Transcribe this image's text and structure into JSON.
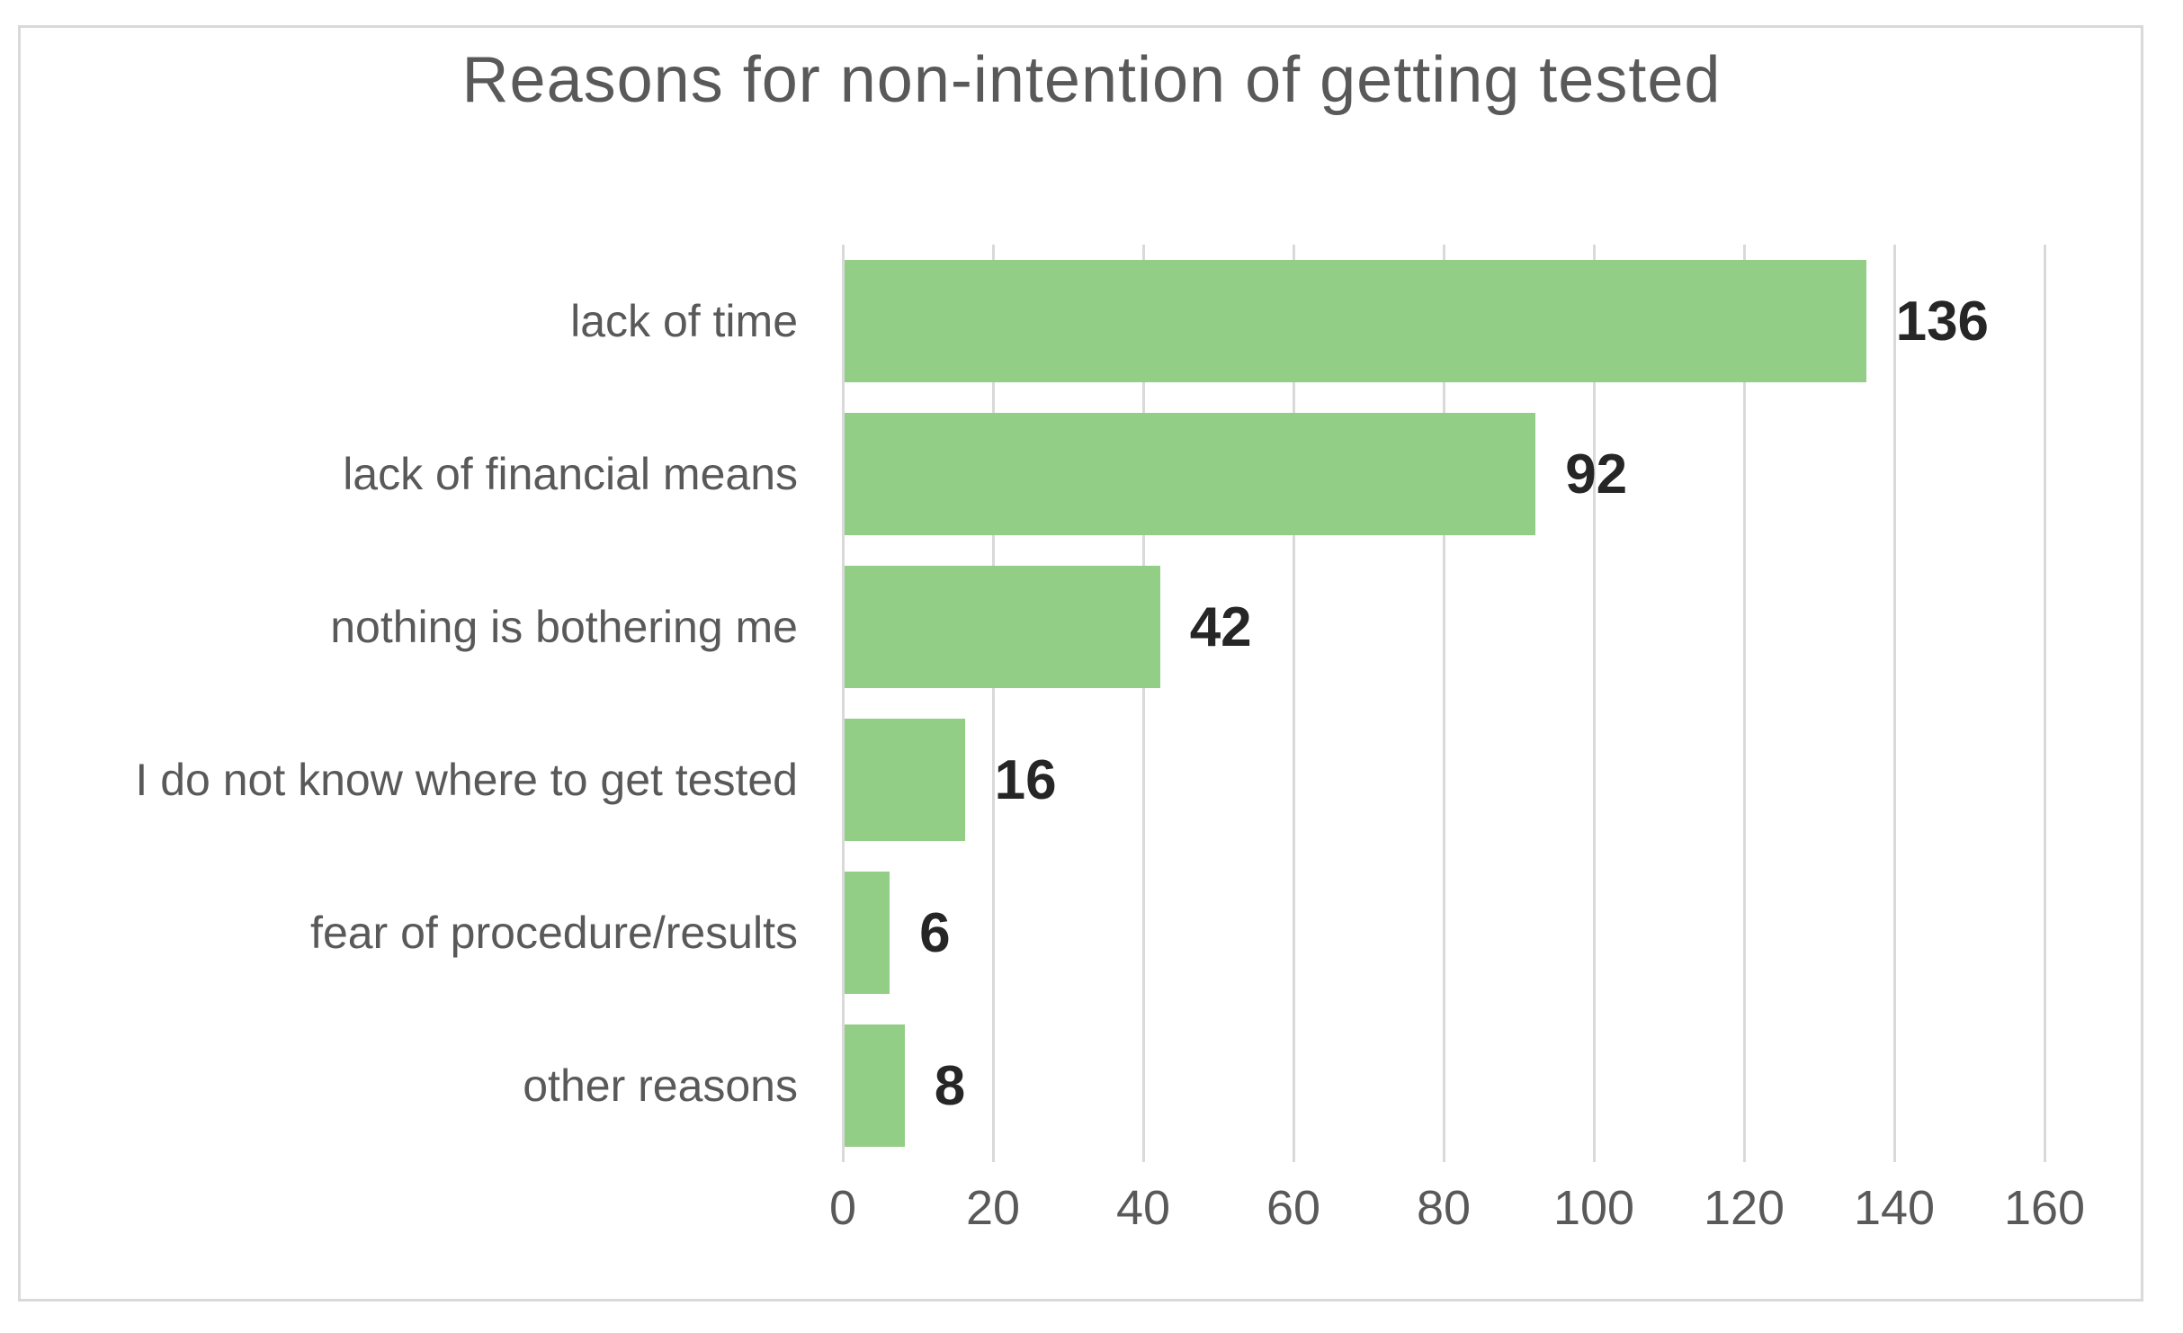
{
  "chart_data": {
    "type": "bar",
    "orientation": "horizontal",
    "title": "Reasons for non-intention of getting tested",
    "categories": [
      "lack of time",
      "lack of financial means",
      "nothing is bothering me",
      "I do not know where to get tested",
      "fear of procedure/results",
      "other reasons"
    ],
    "values": [
      136,
      92,
      42,
      16,
      6,
      8
    ],
    "data_labels": [
      136,
      92,
      42,
      16,
      6,
      8
    ],
    "xlabel": "",
    "ylabel": "",
    "xlim": [
      0,
      160
    ],
    "x_ticks": [
      0,
      20,
      40,
      60,
      80,
      100,
      120,
      140,
      160
    ],
    "grid": "vertical-major-gridlines",
    "legend_position": "none",
    "colors": {
      "bar_fill": "#92CE85",
      "gridline": "#D9D9D9",
      "frame_border": "#D9D9D9",
      "title_text": "#595959",
      "axis_text": "#595959",
      "data_label_text": "#262626",
      "background": "#FFFFFF"
    }
  }
}
